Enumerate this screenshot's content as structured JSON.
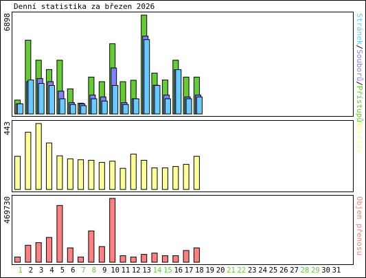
{
  "title": "Denní statistika za březen 2026",
  "colors": {
    "hits": "#66cc33",
    "files": "#8080ff",
    "pages": "#66ccff",
    "visits": "#ffff99",
    "kbytes": "#ff8080",
    "weekend": "#66cc33",
    "axis_text": "#000000",
    "frame": "#000000"
  },
  "chart_data": [
    {
      "type": "bar",
      "panel": "top",
      "y_max_label": "6898",
      "ylim": [
        0,
        6898
      ],
      "legend": [
        {
          "text": "Stránek",
          "color": "#66ccff"
        },
        {
          "text": "/",
          "color": "#000000"
        },
        {
          "text": "Souborů",
          "color": "#8080ff"
        },
        {
          "text": "/",
          "color": "#000000"
        },
        {
          "text": "Přístupů",
          "color": "#66cc33"
        }
      ],
      "categories": [
        1,
        2,
        3,
        4,
        5,
        6,
        7,
        8,
        9,
        10,
        11,
        12,
        13,
        14,
        15,
        16,
        17,
        18
      ],
      "series": [
        {
          "name": "Přístupů",
          "values": [
            970,
            5150,
            3750,
            3100,
            3750,
            1750,
            750,
            2570,
            2250,
            4900,
            2250,
            2350,
            6898,
            2850,
            2370,
            3750,
            2570,
            2570
          ]
        },
        {
          "name": "Souborů",
          "values": [
            710,
            2250,
            2470,
            2250,
            1590,
            790,
            710,
            1320,
            1190,
            3210,
            790,
            1060,
            5430,
            2000,
            1320,
            3090,
            1190,
            1320
          ]
        },
        {
          "name": "Stránek",
          "values": [
            710,
            2370,
            2130,
            1990,
            1060,
            660,
            580,
            1060,
            900,
            1990,
            660,
            1060,
            5190,
            1990,
            1060,
            3090,
            1060,
            1190
          ]
        }
      ]
    },
    {
      "type": "bar",
      "panel": "middle",
      "y_max_label": "443",
      "ylim": [
        0,
        443
      ],
      "legend": [
        {
          "text": "Návštěv",
          "color": "#ffff99"
        }
      ],
      "categories": [
        1,
        2,
        3,
        4,
        5,
        6,
        7,
        8,
        9,
        10,
        11,
        12,
        13,
        14,
        15,
        16,
        17,
        18
      ],
      "series": [
        {
          "name": "Návštěv",
          "values": [
            223,
            385,
            443,
            313,
            226,
            206,
            200,
            196,
            182,
            190,
            142,
            238,
            196,
            145,
            145,
            154,
            169,
            223
          ]
        }
      ]
    },
    {
      "type": "bar",
      "panel": "bottom",
      "y_max_label": "469730",
      "ylim": [
        0,
        469730
      ],
      "legend": [
        {
          "text": "Objem přenosu",
          "color": "#ff8080"
        }
      ],
      "categories": [
        1,
        2,
        3,
        4,
        5,
        6,
        7,
        8,
        9,
        10,
        11,
        12,
        13,
        14,
        15,
        16,
        17,
        18
      ],
      "series": [
        {
          "name": "Objem přenosu",
          "values": [
            38400,
            124700,
            144000,
            182400,
            417600,
            105600,
            38400,
            230400,
            115200,
            469730,
            48000,
            38400,
            57600,
            67200,
            48000,
            48000,
            86400,
            105600
          ]
        }
      ]
    }
  ],
  "x_axis": {
    "days": [
      {
        "label": "1",
        "weekend": true
      },
      {
        "label": "2",
        "weekend": false
      },
      {
        "label": "3",
        "weekend": false
      },
      {
        "label": "4",
        "weekend": false
      },
      {
        "label": "5",
        "weekend": false
      },
      {
        "label": "6",
        "weekend": false
      },
      {
        "label": "7",
        "weekend": true
      },
      {
        "label": "8",
        "weekend": true
      },
      {
        "label": "9",
        "weekend": false
      },
      {
        "label": "10",
        "weekend": false
      },
      {
        "label": "11",
        "weekend": false
      },
      {
        "label": "12",
        "weekend": false
      },
      {
        "label": "13",
        "weekend": false
      },
      {
        "label": "14",
        "weekend": true
      },
      {
        "label": "15",
        "weekend": true
      },
      {
        "label": "16",
        "weekend": false
      },
      {
        "label": "17",
        "weekend": false
      },
      {
        "label": "18",
        "weekend": false
      },
      {
        "label": "19",
        "weekend": false
      },
      {
        "label": "20",
        "weekend": false
      },
      {
        "label": "21",
        "weekend": true
      },
      {
        "label": "22",
        "weekend": true
      },
      {
        "label": "23",
        "weekend": false
      },
      {
        "label": "24",
        "weekend": false
      },
      {
        "label": "25",
        "weekend": false
      },
      {
        "label": "26",
        "weekend": false
      },
      {
        "label": "27",
        "weekend": false
      },
      {
        "label": "28",
        "weekend": true
      },
      {
        "label": "29",
        "weekend": true
      },
      {
        "label": "30",
        "weekend": false
      },
      {
        "label": "31",
        "weekend": false
      }
    ]
  }
}
